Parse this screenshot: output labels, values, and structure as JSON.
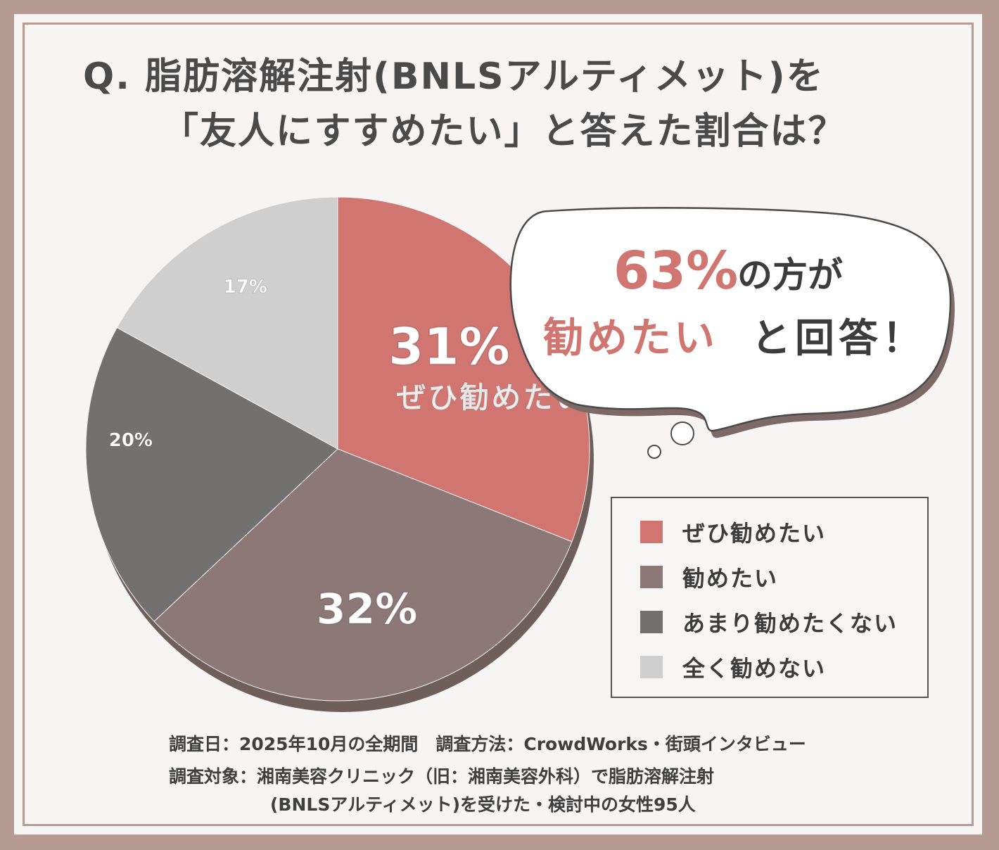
{
  "title": {
    "line1": "Q. 脂肪溶解注射(BNLSアルティメット)を",
    "line2": "「友人にすすめたい」と答えた割合は？"
  },
  "chart_data": {
    "type": "pie",
    "categories": [
      "ぜひ勧めたい",
      "勧めたい",
      "あまり勧めたくない",
      "全く勧めない"
    ],
    "values": [
      31,
      32,
      20,
      17
    ],
    "labels": [
      "31%",
      "32%",
      "20%",
      "17%"
    ],
    "highlight_sublabel": "ぜひ勧めたい",
    "colors": [
      "#d07570",
      "#8c7876",
      "#737070",
      "#d0cfcf"
    ],
    "legend_position": "bottom-right"
  },
  "callout": {
    "percent": "63%",
    "text1": "の方が",
    "text2_highlight": "勧めたい",
    "text2_rest": "と回答！",
    "accent_color": "#d07570",
    "text_color": "#3c3c3c"
  },
  "legend": {
    "items": [
      {
        "label": "ぜひ勧めたい",
        "color": "#d07570"
      },
      {
        "label": "勧めたい",
        "color": "#8c7876"
      },
      {
        "label": "あまり勧めたくない",
        "color": "#737070"
      },
      {
        "label": "全く勧めない",
        "color": "#d0cfcf"
      }
    ]
  },
  "notes": {
    "line1": "調査日：2025年10月の全期間　調査方法：CrowdWorks・街頭インタビュー",
    "line2": "調査対象：湘南美容クリニック（旧：湘南美容外科）で脂肪溶解注射",
    "line3": "(BNLSアルティメット)を受けた・検討中の女性95人"
  }
}
